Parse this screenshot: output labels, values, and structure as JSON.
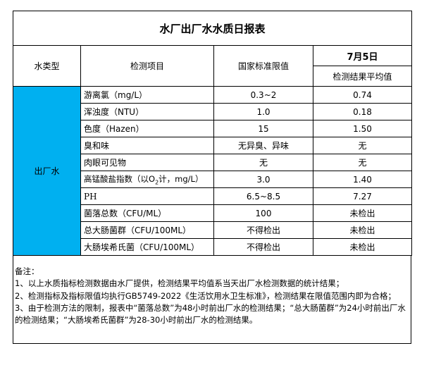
{
  "title": "水厂出厂水水质日报表",
  "headers": {
    "type": "水类型",
    "item": "检测项目",
    "standard": "国家标准限值",
    "date": "7月5日",
    "result": "检测结果平均值"
  },
  "water_type": "出厂水",
  "type_color": "#00b0f0",
  "rows": [
    {
      "item": "游离氯（mg/L）",
      "standard": "0.3~2",
      "result": "0.74"
    },
    {
      "item": "浑浊度（NTU）",
      "standard": "1.0",
      "result": "0.18"
    },
    {
      "item": "色度（Hazen）",
      "standard": "15",
      "result": "1.50"
    },
    {
      "item": "臭和味",
      "standard": "无异臭、异味",
      "result": "无"
    },
    {
      "item": "肉眼可见物",
      "standard": "无",
      "result": "无"
    },
    {
      "item_pre": "高锰酸盐指数（以O",
      "item_sub": "2",
      "item_post": "计，mg/L）",
      "standard": "3.0",
      "result": "1.40"
    },
    {
      "item": "PH",
      "standard": "6.5~8.5",
      "result": "7.27"
    },
    {
      "item": "菌落总数（CFU/ML）",
      "standard": "100",
      "result": "未检出"
    },
    {
      "item": "总大肠菌群（CFU/100ML）",
      "standard": "不得检出",
      "result": "未检出"
    },
    {
      "item": "大肠埃希氏菌（CFU/100ML）",
      "standard": "不得检出",
      "result": "未检出"
    }
  ],
  "notes": {
    "heading": "备注：",
    "lines": [
      "1、以上水质指标检测数据由水厂提供，检测结果平均值系当天出厂水检测数据的统计结果；",
      "2、检测指标及指标限值均执行GB5749-2022《生活饮用水卫生标准》，检测结果在限值范围内即为合格；",
      "3、由于检测方法的限制，报表中“菌落总数”为48小时前出厂水的检测结果；“总大肠菌群”为24小时前出厂水的检测结果；“大肠埃希氏菌群”为28-30小时前出厂水的检测结果。"
    ]
  }
}
